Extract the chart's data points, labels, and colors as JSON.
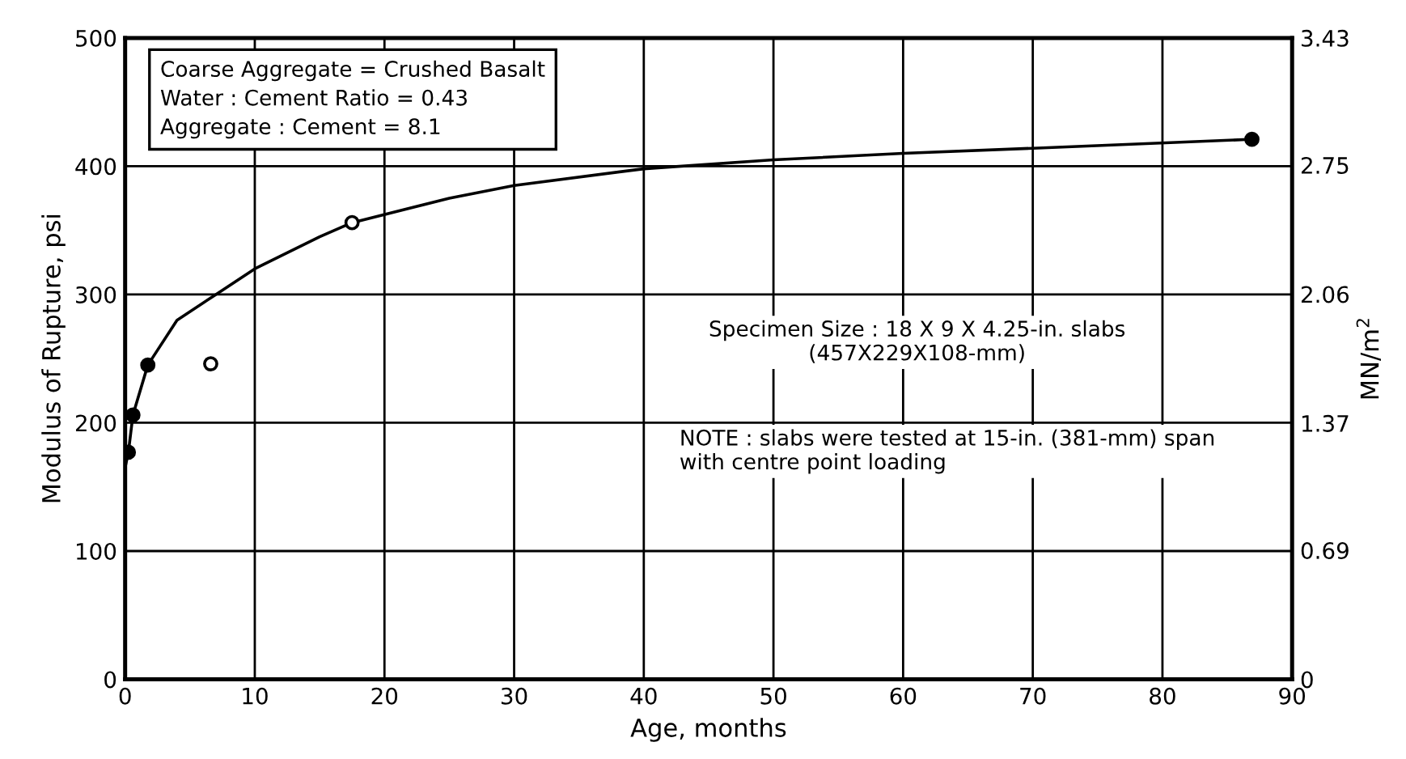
{
  "chart_data": {
    "type": "line",
    "xlabel": "Age, months",
    "ylabel": "Modulus of Rupture, psi",
    "y2label": "MN/m$^{2}$",
    "series": [
      {
        "color": "#000000",
        "line_style": "solid",
        "x": [
          0,
          0.25,
          0.6,
          1.75,
          4,
          7,
          10,
          15,
          17.5,
          25,
          30,
          40,
          50,
          60,
          70,
          86.9
        ],
        "values": [
          165,
          177,
          206,
          245,
          280,
          300,
          320,
          345,
          356,
          375,
          385,
          398,
          405,
          410,
          414,
          421
        ]
      },
      {
        "type": "scatter",
        "marker": "circle",
        "color": "#000000",
        "x": [
          0.25,
          0.6,
          1.75,
          86.9
        ],
        "values": [
          177,
          206,
          245,
          421
        ]
      },
      {
        "type": "scatter",
        "marker": "circle",
        "color": "#ffffff",
        "x": [
          6.6,
          17.5
        ],
        "values": [
          246,
          356
        ]
      }
    ],
    "xlim": [
      0,
      90
    ],
    "xticks": [
      0,
      10,
      20,
      30,
      40,
      50,
      60,
      70,
      80,
      90
    ],
    "ylim": [
      0,
      500
    ],
    "yticks": [
      0,
      100,
      200,
      300,
      400,
      500
    ],
    "y2lim": [
      0,
      3.43
    ],
    "y2ticks": [
      0,
      0.69,
      1.37,
      2.06,
      2.75,
      3.43
    ],
    "grid": true,
    "annotations": [
      "Coarse Aggregate = Crushed Basalt\nWater : Cement Ratio = 0.43\nAggregate : Cement = 8.1",
      "Specimen Size : 18 X 9 X 4.25-in. slabs\n(457X229X108-mm)",
      "NOTE : slabs were tested at 15-in. (381-mm) span\nwith centre point loading"
    ]
  }
}
